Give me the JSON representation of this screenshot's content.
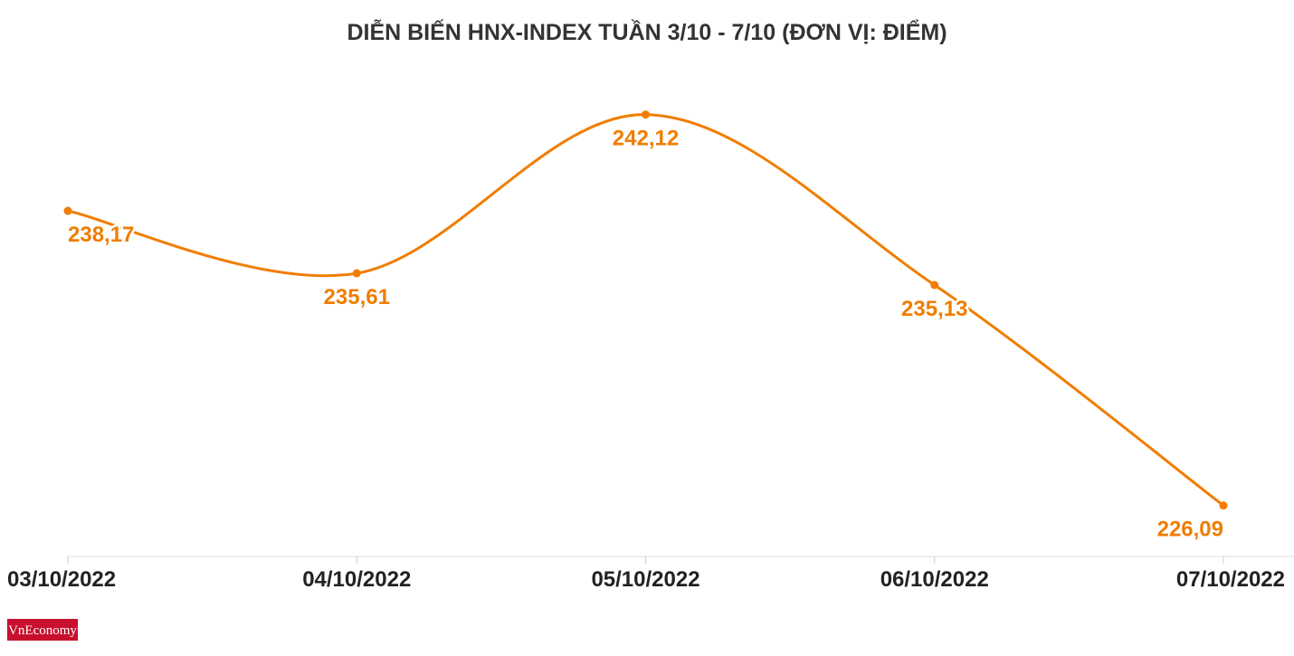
{
  "chart_data": {
    "type": "line",
    "title": "DIỄN BIẾN HNX-INDEX TUẦN 3/10 - 7/10 (ĐƠN VỊ: ĐIỂM)",
    "categories": [
      "03/10/2022",
      "04/10/2022",
      "05/10/2022",
      "06/10/2022",
      "07/10/2022"
    ],
    "values": [
      238.17,
      235.61,
      242.12,
      235.13,
      226.09
    ],
    "value_labels": [
      "238,17",
      "235,61",
      "242,12",
      "235,13",
      "226,09"
    ],
    "color": "#f07d00",
    "ylim": [
      224,
      246
    ]
  },
  "brand": "VnEconomy"
}
